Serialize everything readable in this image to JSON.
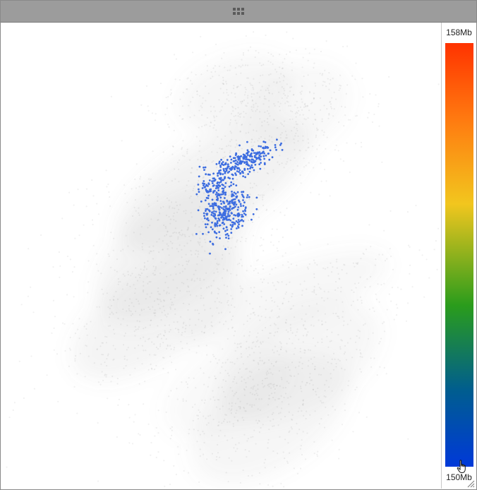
{
  "window": {
    "titlebar_icon": "drag-handle-icon"
  },
  "legend": {
    "max_label": "158Mb",
    "min_label": "150Mb",
    "gradient_stops": [
      "#0039d9",
      "#005d8f",
      "#2a9c1c",
      "#f2c61e",
      "#ff7a10",
      "#ff3300"
    ]
  },
  "plot": {
    "background_cloud_color": "#7a7a7a",
    "highlight_color": "#3d6de0"
  },
  "cursor": {
    "icon": "hand-pointer-icon"
  },
  "resize": {
    "icon": "resize-grip-icon"
  }
}
